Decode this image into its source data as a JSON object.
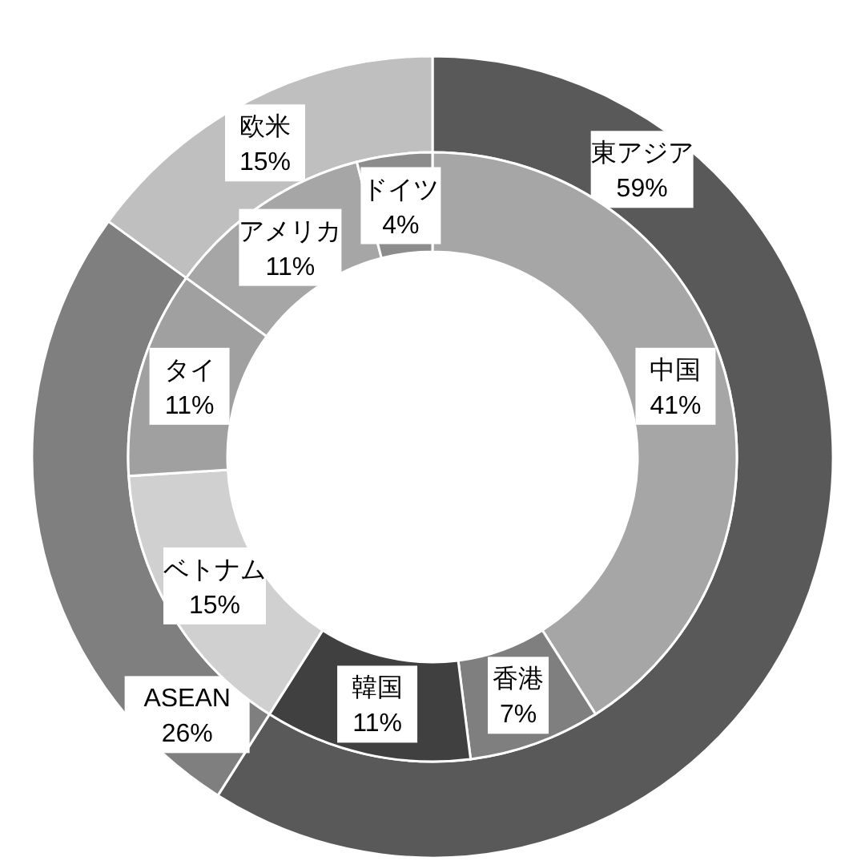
{
  "chart_data": [
    {
      "type": "donut",
      "categories": [
        "東アジア",
        "ASEAN",
        "欧米"
      ],
      "values": [
        59,
        26,
        15
      ],
      "value_labels": [
        "59%",
        "26%",
        "15%"
      ],
      "colors": [
        "#595959",
        "#7f7f7f",
        "#bfbfbf"
      ]
    },
    {
      "type": "donut",
      "categories": [
        "中国",
        "香港",
        "韓国",
        "ベトナム",
        "タイ",
        "アメリカ",
        "ドイツ"
      ],
      "values": [
        41,
        7,
        11,
        15,
        11,
        11,
        4
      ],
      "value_labels": [
        "41%",
        "7%",
        "11%",
        "15%",
        "11%",
        "11%",
        "4%"
      ],
      "colors": [
        "#a6a6a6",
        "#7f7f7f",
        "#404040",
        "#d0d0d0",
        "#a0a0a0",
        "#a6a6a6",
        "#8c8c8c"
      ]
    }
  ]
}
